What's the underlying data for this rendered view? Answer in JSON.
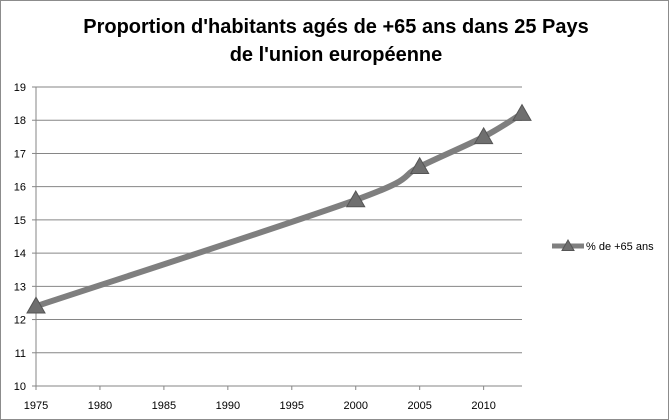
{
  "chart_data": {
    "type": "line",
    "title_lines": [
      "Proportion d'habitants agés de +65 ans dans 25 Pays",
      "de l'union européenne"
    ],
    "xlabel": "",
    "ylabel": "",
    "x_ticks": [
      1975,
      1980,
      1985,
      1990,
      1995,
      2000,
      2005,
      2010
    ],
    "xlim": [
      1975,
      2013
    ],
    "y_ticks": [
      10,
      11,
      12,
      13,
      14,
      15,
      16,
      17,
      18,
      19
    ],
    "ylim": [
      10,
      19
    ],
    "grid": {
      "horizontal": true,
      "vertical": false
    },
    "legend_position": "right",
    "series": [
      {
        "name": "% de +65 ans",
        "color": "#7f7f7f",
        "marker": "triangle",
        "x": [
          1975,
          2000,
          2005,
          2010,
          2013
        ],
        "y": [
          12.4,
          15.6,
          16.6,
          17.5,
          18.2
        ]
      }
    ]
  }
}
